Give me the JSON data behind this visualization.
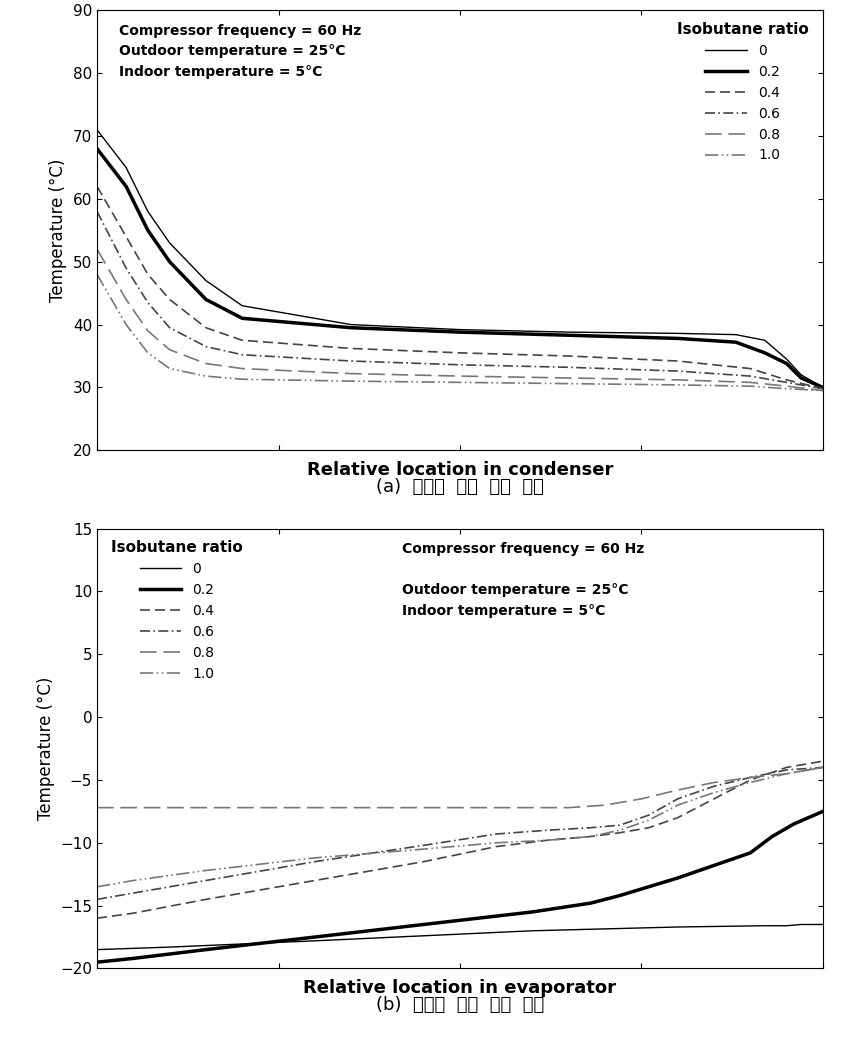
{
  "condenser": {
    "xlabel": "Relative location in condenser",
    "ylabel": "Temperature (°C)",
    "ylim": [
      20,
      90
    ],
    "yticks": [
      20,
      30,
      40,
      50,
      60,
      70,
      80,
      90
    ],
    "xticks": [
      0,
      0.25,
      0.5,
      0.75,
      1.0
    ],
    "annotation": "Compressor frequency = 60 Hz\nOutdoor temperature = 25°C\nIndoor temperature = 5°C",
    "legend_title": "Isobutane ratio",
    "series": {
      "0": {
        "lw": 1.0,
        "ls": "-",
        "color": "#000000",
        "dashes": null
      },
      "0.2": {
        "lw": 2.5,
        "ls": "-",
        "color": "#000000",
        "dashes": null
      },
      "0.4": {
        "lw": 1.2,
        "ls": "--",
        "color": "#444444",
        "dashes": [
          6,
          3
        ]
      },
      "0.6": {
        "lw": 1.2,
        "ls": "-.",
        "color": "#444444",
        "dashes": [
          6,
          2,
          1,
          2
        ]
      },
      "0.8": {
        "lw": 1.2,
        "ls": "--",
        "color": "#777777",
        "dashes": [
          10,
          4
        ]
      },
      "1.0": {
        "lw": 1.2,
        "ls": "-.",
        "color": "#777777",
        "dashes": [
          8,
          2,
          1,
          2,
          1,
          2
        ]
      }
    },
    "data": {
      "0": [
        [
          0,
          0.04,
          0.07,
          0.1,
          0.15,
          0.2,
          0.35,
          0.5,
          0.65,
          0.8,
          0.88,
          0.92,
          0.95,
          0.97,
          1.0
        ],
        [
          71,
          65,
          58,
          53,
          47,
          43,
          40,
          39.2,
          38.8,
          38.6,
          38.4,
          37.5,
          34.5,
          32.0,
          30.0
        ]
      ],
      "0.2": [
        [
          0,
          0.04,
          0.07,
          0.1,
          0.15,
          0.2,
          0.35,
          0.5,
          0.65,
          0.8,
          0.88,
          0.92,
          0.95,
          0.97,
          1.0
        ],
        [
          68,
          62,
          55,
          50,
          44,
          41,
          39.5,
          38.8,
          38.3,
          37.8,
          37.2,
          35.5,
          33.8,
          31.5,
          30.0
        ]
      ],
      "0.4": [
        [
          0,
          0.04,
          0.07,
          0.1,
          0.15,
          0.2,
          0.35,
          0.5,
          0.65,
          0.8,
          0.9,
          0.95,
          1.0
        ],
        [
          62,
          54,
          48,
          44,
          39.5,
          37.5,
          36.2,
          35.5,
          35.0,
          34.2,
          33.0,
          31.2,
          29.8
        ]
      ],
      "0.6": [
        [
          0,
          0.04,
          0.07,
          0.1,
          0.15,
          0.2,
          0.35,
          0.5,
          0.65,
          0.8,
          0.9,
          0.95,
          1.0
        ],
        [
          58,
          49,
          43.5,
          39.5,
          36.5,
          35.2,
          34.2,
          33.6,
          33.2,
          32.6,
          31.8,
          30.8,
          29.8
        ]
      ],
      "0.8": [
        [
          0,
          0.04,
          0.07,
          0.1,
          0.15,
          0.2,
          0.35,
          0.5,
          0.65,
          0.8,
          0.9,
          0.95,
          1.0
        ],
        [
          52,
          44,
          39,
          36,
          33.8,
          33.0,
          32.2,
          31.8,
          31.5,
          31.2,
          30.8,
          30.2,
          29.5
        ]
      ],
      "1.0": [
        [
          0,
          0.04,
          0.07,
          0.1,
          0.15,
          0.2,
          0.35,
          0.5,
          0.65,
          0.8,
          0.9,
          0.95,
          1.0
        ],
        [
          48,
          40,
          35.5,
          33.0,
          31.8,
          31.3,
          31.0,
          30.8,
          30.6,
          30.4,
          30.2,
          29.8,
          29.5
        ]
      ]
    }
  },
  "evaporator": {
    "xlabel": "Relative location in evaporator",
    "ylabel": "Temperature (°C)",
    "ylim": [
      -20,
      15
    ],
    "yticks": [
      -20,
      -15,
      -10,
      -5,
      0,
      5,
      10,
      15
    ],
    "xticks": [
      0,
      0.25,
      0.5,
      0.75,
      1.0
    ],
    "annotation": "Compressor frequency = 60 Hz\nOutdoor temperature = 25°C\nIndoor temperature = 5°C",
    "legend_title": "Isobutane ratio",
    "series": {
      "0": {
        "lw": 1.0,
        "ls": "-",
        "color": "#000000",
        "dashes": null
      },
      "0.2": {
        "lw": 2.5,
        "ls": "-",
        "color": "#000000",
        "dashes": null
      },
      "0.4": {
        "lw": 1.2,
        "ls": "--",
        "color": "#444444",
        "dashes": [
          6,
          3
        ]
      },
      "0.6": {
        "lw": 1.2,
        "ls": "-.",
        "color": "#444444",
        "dashes": [
          6,
          2,
          1,
          2
        ]
      },
      "0.8": {
        "lw": 1.2,
        "ls": "--",
        "color": "#777777",
        "dashes": [
          10,
          4
        ]
      },
      "1.0": {
        "lw": 1.2,
        "ls": "-.",
        "color": "#777777",
        "dashes": [
          8,
          2,
          1,
          2,
          1,
          2
        ]
      }
    },
    "data": {
      "0": [
        [
          0,
          0.1,
          0.3,
          0.6,
          0.8,
          0.92,
          0.95,
          0.97,
          1.0
        ],
        [
          -18.5,
          -18.3,
          -17.8,
          -17.0,
          -16.7,
          -16.6,
          -16.6,
          -16.5,
          -16.5
        ]
      ],
      "0.2": [
        [
          0,
          0.05,
          0.15,
          0.3,
          0.45,
          0.6,
          0.68,
          0.72,
          0.76,
          0.8,
          0.85,
          0.9,
          0.93,
          0.96,
          1.0
        ],
        [
          -19.5,
          -19.2,
          -18.5,
          -17.5,
          -16.5,
          -15.5,
          -14.8,
          -14.2,
          -13.5,
          -12.8,
          -11.8,
          -10.8,
          -9.5,
          -8.5,
          -7.5
        ]
      ],
      "0.4": [
        [
          0,
          0.05,
          0.15,
          0.3,
          0.45,
          0.55,
          0.62,
          0.68,
          0.72,
          0.76,
          0.8,
          0.85,
          0.9,
          0.95,
          1.0
        ],
        [
          -16.0,
          -15.6,
          -14.5,
          -13.0,
          -11.5,
          -10.3,
          -9.8,
          -9.5,
          -9.2,
          -8.8,
          -8.0,
          -6.5,
          -5.0,
          -4.0,
          -3.5
        ]
      ],
      "0.6": [
        [
          0,
          0.05,
          0.15,
          0.3,
          0.45,
          0.55,
          0.62,
          0.68,
          0.72,
          0.76,
          0.8,
          0.85,
          0.9,
          0.95,
          1.0
        ],
        [
          -14.5,
          -14.0,
          -13.0,
          -11.5,
          -10.2,
          -9.3,
          -9.0,
          -8.8,
          -8.6,
          -7.8,
          -6.5,
          -5.5,
          -4.8,
          -4.2,
          -4.0
        ]
      ],
      "0.8": [
        [
          0,
          0.1,
          0.3,
          0.5,
          0.6,
          0.65,
          0.7,
          0.75,
          0.8,
          0.85,
          0.9,
          0.95,
          1.0
        ],
        [
          -7.2,
          -7.2,
          -7.2,
          -7.2,
          -7.2,
          -7.2,
          -7.0,
          -6.5,
          -5.8,
          -5.2,
          -4.8,
          -4.5,
          -4.0
        ]
      ],
      "1.0": [
        [
          0,
          0.05,
          0.15,
          0.3,
          0.45,
          0.55,
          0.62,
          0.68,
          0.72,
          0.76,
          0.8,
          0.85,
          0.9,
          0.95,
          1.0
        ],
        [
          -13.5,
          -13.0,
          -12.2,
          -11.2,
          -10.5,
          -10.0,
          -9.8,
          -9.5,
          -9.0,
          -8.2,
          -7.0,
          -6.0,
          -5.2,
          -4.5,
          -4.0
        ]
      ]
    }
  },
  "caption_a": "(a)  응축기  내부  온도  분포",
  "caption_b": "(b)  증발기  내부  온도  분포",
  "bg_color": "#ffffff"
}
